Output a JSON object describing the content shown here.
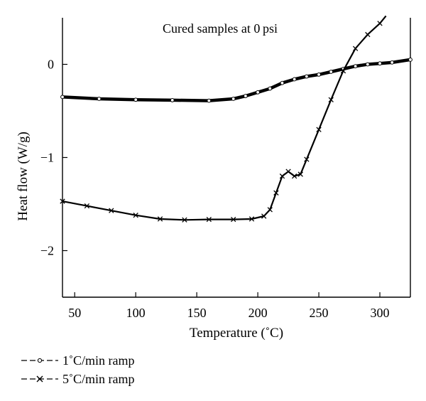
{
  "chart_data": {
    "type": "line",
    "title": "",
    "annotation": "Cured samples at 0 psi",
    "xlabel": "Temperature (˚C)",
    "ylabel": "Heat flow (W/g)",
    "xlim": [
      40,
      325
    ],
    "ylim": [
      -2.5,
      0.5
    ],
    "xticks": [
      50,
      100,
      150,
      200,
      250,
      300
    ],
    "xtick_labels": [
      "50",
      "100",
      "150",
      "200",
      "250",
      "300"
    ],
    "yticks": [
      -2,
      -1,
      0
    ],
    "ytick_labels": [
      "−2",
      "−1",
      "0"
    ],
    "grid": false,
    "legend_position": "bottom-left, below plot",
    "series": [
      {
        "name": "1˚C/min ramp",
        "marker": "circle",
        "x": [
          40,
          70,
          100,
          130,
          160,
          180,
          190,
          200,
          210,
          220,
          230,
          240,
          250,
          260,
          270,
          280,
          290,
          300,
          310,
          325
        ],
        "y": [
          -0.35,
          -0.37,
          -0.38,
          -0.385,
          -0.39,
          -0.37,
          -0.34,
          -0.3,
          -0.26,
          -0.2,
          -0.16,
          -0.13,
          -0.11,
          -0.08,
          -0.05,
          -0.02,
          0.0,
          0.01,
          0.02,
          0.05
        ]
      },
      {
        "name": "5˚C/min ramp",
        "marker": "x",
        "x": [
          40,
          60,
          80,
          100,
          120,
          140,
          160,
          180,
          195,
          205,
          210,
          215,
          220,
          225,
          230,
          235,
          240,
          250,
          260,
          270,
          280,
          290,
          300,
          305
        ],
        "y": [
          -1.47,
          -1.52,
          -1.57,
          -1.62,
          -1.66,
          -1.67,
          -1.665,
          -1.665,
          -1.66,
          -1.63,
          -1.56,
          -1.38,
          -1.2,
          -1.15,
          -1.2,
          -1.18,
          -1.02,
          -0.7,
          -0.38,
          -0.07,
          0.17,
          0.32,
          0.44,
          0.52
        ]
      }
    ]
  }
}
